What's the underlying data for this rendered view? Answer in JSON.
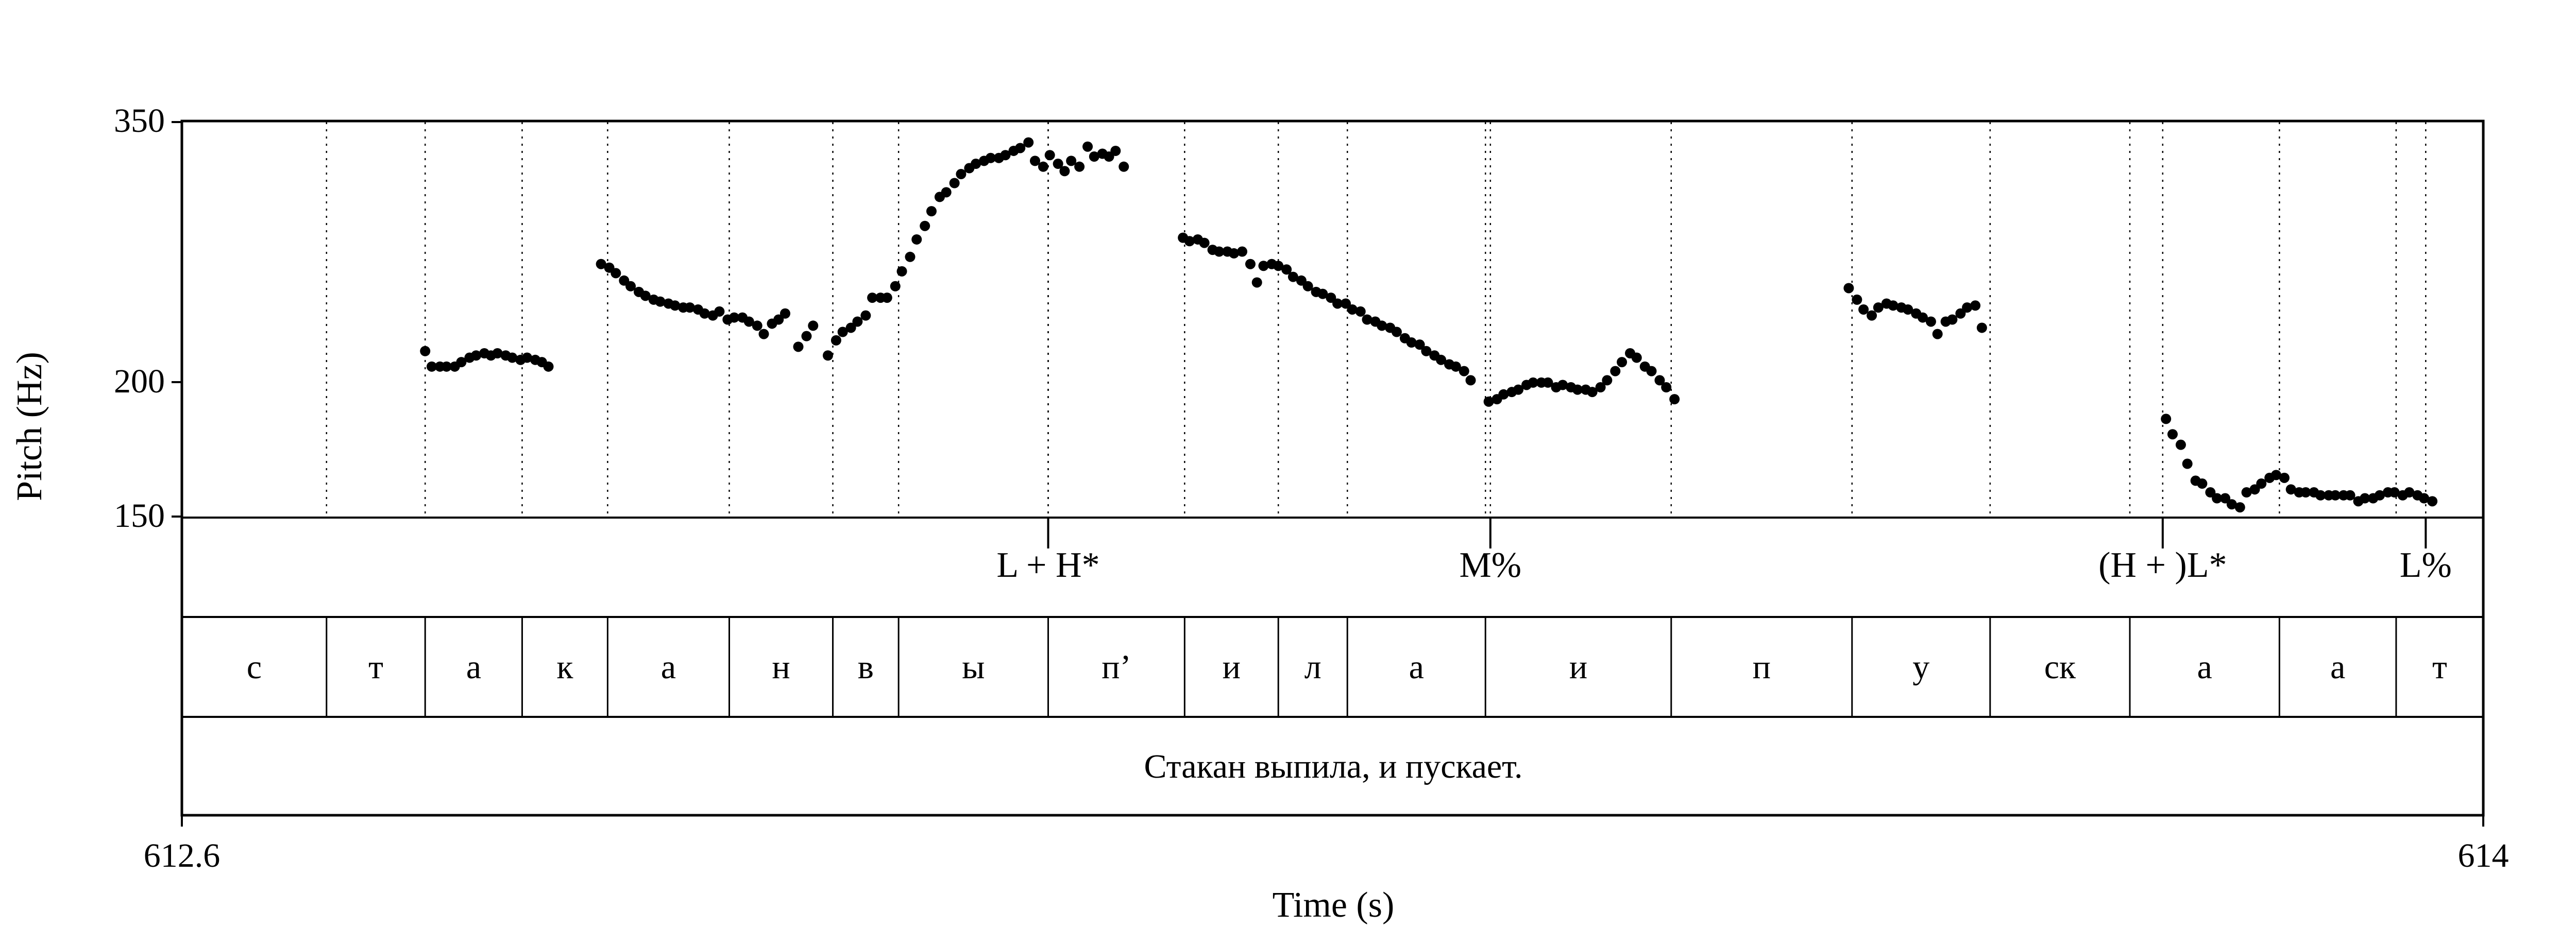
{
  "chart_data": {
    "type": "scatter",
    "ylabel": "Pitch (Hz)",
    "xlabel": "Time (s)",
    "xlim": [
      612.6,
      614
    ],
    "ylim": [
      150,
      350
    ],
    "y_scale": "log",
    "x_tick_labels": [
      "612.6",
      "614"
    ],
    "y_tick_labels": [
      "350",
      "200",
      "150"
    ],
    "y_ticks": [
      350,
      200,
      150
    ],
    "tone_tier": [
      {
        "t": 613.127,
        "label": "L + H*"
      },
      {
        "t": 613.396,
        "label": "M%"
      },
      {
        "t": 613.805,
        "label": "(H + )L*"
      },
      {
        "t": 613.965,
        "label": "L%"
      }
    ],
    "phone_boundaries": [
      612.688,
      612.748,
      612.807,
      612.859,
      612.933,
      612.996,
      613.036,
      613.127,
      613.21,
      613.267,
      613.309,
      613.393,
      613.506,
      613.616,
      613.7,
      613.785,
      613.876,
      613.947
    ],
    "phones": [
      "с",
      "т",
      "а",
      "к",
      "а",
      "н",
      "в",
      "ы",
      "п’",
      "и",
      "л",
      "а",
      "и",
      "п",
      "у",
      "ск",
      "а",
      "а",
      "т"
    ],
    "sentence": "Стакан выпила, и пускает.",
    "series": [
      {
        "points": [
          [
            612.748,
            214
          ],
          [
            612.752,
            207
          ],
          [
            612.757,
            207
          ],
          [
            612.761,
            207
          ],
          [
            612.766,
            207
          ],
          [
            612.77,
            209
          ],
          [
            612.775,
            211
          ],
          [
            612.779,
            212
          ],
          [
            612.784,
            213
          ],
          [
            612.788,
            212
          ],
          [
            612.792,
            213
          ],
          [
            612.797,
            212
          ],
          [
            612.801,
            211
          ],
          [
            612.806,
            210
          ],
          [
            612.81,
            211
          ],
          [
            612.815,
            210
          ],
          [
            612.819,
            209
          ],
          [
            612.823,
            207
          ],
          [
            612.855,
            258
          ],
          [
            612.86,
            256
          ],
          [
            612.864,
            253
          ],
          [
            612.869,
            249
          ],
          [
            612.873,
            246
          ],
          [
            612.878,
            243
          ],
          [
            612.882,
            241
          ],
          [
            612.887,
            239
          ],
          [
            612.891,
            238
          ],
          [
            612.896,
            237
          ],
          [
            612.9,
            236
          ],
          [
            612.905,
            235
          ],
          [
            612.909,
            235
          ],
          [
            612.914,
            234
          ],
          [
            612.918,
            232
          ],
          [
            612.923,
            231
          ],
          [
            612.927,
            233
          ],
          [
            612.932,
            229
          ],
          [
            612.936,
            230
          ],
          [
            612.941,
            230
          ],
          [
            612.945,
            228
          ],
          [
            612.95,
            226
          ],
          [
            612.954,
            222
          ],
          [
            612.959,
            227
          ],
          [
            612.963,
            229
          ],
          [
            612.967,
            232
          ],
          [
            612.975,
            216
          ],
          [
            612.98,
            221
          ],
          [
            612.984,
            226
          ],
          [
            612.993,
            212
          ],
          [
            612.998,
            219
          ],
          [
            613.002,
            223
          ],
          [
            613.007,
            225
          ],
          [
            613.011,
            228
          ],
          [
            613.016,
            231
          ],
          [
            613.02,
            240
          ],
          [
            613.025,
            240
          ],
          [
            613.029,
            240
          ],
          [
            613.034,
            246
          ],
          [
            613.038,
            254
          ],
          [
            613.043,
            262
          ],
          [
            613.047,
            272
          ],
          [
            613.052,
            280
          ],
          [
            613.056,
            289
          ],
          [
            613.061,
            298
          ],
          [
            613.065,
            301
          ],
          [
            613.07,
            307
          ],
          [
            613.074,
            313
          ],
          [
            613.079,
            317
          ],
          [
            613.083,
            320
          ],
          [
            613.088,
            322
          ],
          [
            613.092,
            324
          ],
          [
            613.097,
            324
          ],
          [
            613.101,
            326
          ],
          [
            613.106,
            329
          ],
          [
            613.11,
            331
          ],
          [
            613.115,
            335
          ],
          [
            613.119,
            322
          ],
          [
            613.124,
            318
          ],
          [
            613.128,
            326
          ],
          [
            613.133,
            320
          ],
          [
            613.137,
            315
          ],
          [
            613.141,
            322
          ],
          [
            613.146,
            318
          ],
          [
            613.151,
            332
          ],
          [
            613.155,
            325
          ],
          [
            613.16,
            327
          ],
          [
            613.164,
            325
          ],
          [
            613.168,
            329
          ],
          [
            613.173,
            318
          ],
          [
            613.209,
            273
          ],
          [
            613.213,
            271
          ],
          [
            613.218,
            272
          ],
          [
            613.222,
            270
          ],
          [
            613.227,
            266
          ],
          [
            613.231,
            265
          ],
          [
            613.236,
            265
          ],
          [
            613.24,
            264
          ],
          [
            613.245,
            265
          ],
          [
            613.25,
            258
          ],
          [
            613.254,
            248
          ],
          [
            613.258,
            257
          ],
          [
            613.263,
            258
          ],
          [
            613.267,
            257
          ],
          [
            613.272,
            255
          ],
          [
            613.276,
            251
          ],
          [
            613.281,
            249
          ],
          [
            613.285,
            246
          ],
          [
            613.29,
            243
          ],
          [
            613.294,
            242
          ],
          [
            613.299,
            240
          ],
          [
            613.303,
            237
          ],
          [
            613.308,
            237
          ],
          [
            613.312,
            234
          ],
          [
            613.317,
            233
          ],
          [
            613.321,
            229
          ],
          [
            613.326,
            228
          ],
          [
            613.33,
            226
          ],
          [
            613.335,
            225
          ],
          [
            613.339,
            223
          ],
          [
            613.344,
            220
          ],
          [
            613.348,
            218
          ],
          [
            613.353,
            217
          ],
          [
            613.357,
            214
          ],
          [
            613.362,
            212
          ],
          [
            613.366,
            210
          ],
          [
            613.371,
            208
          ],
          [
            613.375,
            207
          ],
          [
            613.38,
            205
          ],
          [
            613.384,
            201
          ],
          [
            613.395,
            192
          ],
          [
            613.4,
            193
          ],
          [
            613.404,
            195
          ],
          [
            613.409,
            196
          ],
          [
            613.413,
            197
          ],
          [
            613.418,
            199
          ],
          [
            613.422,
            200
          ],
          [
            613.427,
            200
          ],
          [
            613.431,
            200
          ],
          [
            613.436,
            198
          ],
          [
            613.44,
            199
          ],
          [
            613.445,
            198
          ],
          [
            613.449,
            197
          ],
          [
            613.454,
            197
          ],
          [
            613.458,
            196
          ],
          [
            613.463,
            198
          ],
          [
            613.467,
            201
          ],
          [
            613.472,
            205
          ],
          [
            613.476,
            209
          ],
          [
            613.481,
            213
          ],
          [
            613.485,
            211
          ],
          [
            613.49,
            207
          ],
          [
            613.494,
            205
          ],
          [
            613.499,
            201
          ],
          [
            613.503,
            198
          ],
          [
            613.508,
            193
          ],
          [
            613.614,
            245
          ],
          [
            613.619,
            239
          ],
          [
            613.623,
            234
          ],
          [
            613.628,
            231
          ],
          [
            613.632,
            235
          ],
          [
            613.637,
            237
          ],
          [
            613.641,
            236
          ],
          [
            613.646,
            235
          ],
          [
            613.65,
            234
          ],
          [
            613.655,
            232
          ],
          [
            613.659,
            230
          ],
          [
            613.664,
            228
          ],
          [
            613.668,
            222
          ],
          [
            613.673,
            228
          ],
          [
            613.677,
            229
          ],
          [
            613.682,
            232
          ],
          [
            613.686,
            235
          ],
          [
            613.691,
            236
          ],
          [
            613.695,
            225
          ],
          [
            613.807,
            185
          ],
          [
            613.811,
            179
          ],
          [
            613.816,
            175
          ],
          [
            613.82,
            168
          ],
          [
            613.825,
            162
          ],
          [
            613.829,
            161
          ],
          [
            613.834,
            158
          ],
          [
            613.838,
            156
          ],
          [
            613.843,
            156
          ],
          [
            613.847,
            154
          ],
          [
            613.852,
            153
          ],
          [
            613.856,
            158
          ],
          [
            613.861,
            159
          ],
          [
            613.865,
            161
          ],
          [
            613.87,
            163
          ],
          [
            613.874,
            164
          ],
          [
            613.879,
            163
          ],
          [
            613.883,
            159
          ],
          [
            613.888,
            158
          ],
          [
            613.892,
            158
          ],
          [
            613.897,
            158
          ],
          [
            613.901,
            157
          ],
          [
            613.906,
            157
          ],
          [
            613.91,
            157
          ],
          [
            613.915,
            157
          ],
          [
            613.919,
            157
          ],
          [
            613.924,
            155
          ],
          [
            613.928,
            156
          ],
          [
            613.933,
            156
          ],
          [
            613.937,
            157
          ],
          [
            613.942,
            158
          ],
          [
            613.946,
            158
          ],
          [
            613.951,
            157
          ],
          [
            613.955,
            158
          ],
          [
            613.96,
            157
          ],
          [
            613.964,
            156
          ],
          [
            613.969,
            155
          ]
        ]
      }
    ]
  }
}
